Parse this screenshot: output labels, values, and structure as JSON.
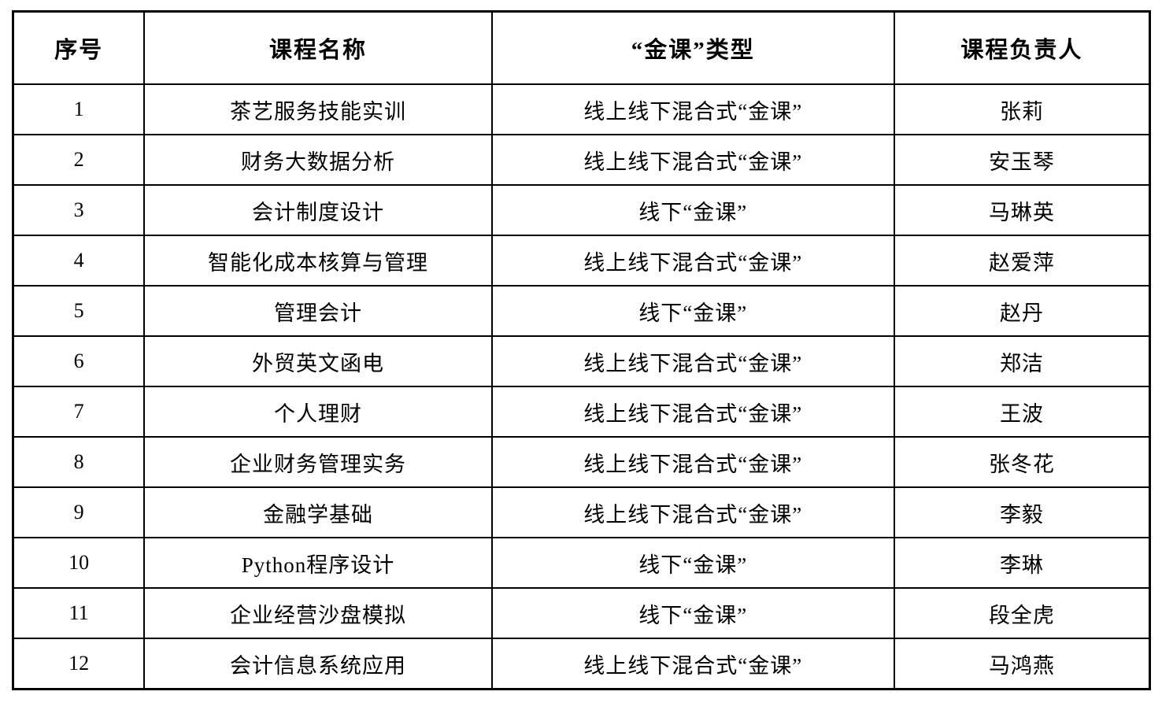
{
  "table": {
    "columns": [
      {
        "key": "no",
        "label": "序号"
      },
      {
        "key": "course",
        "label": "课程名称"
      },
      {
        "key": "type",
        "label": "“金课”类型"
      },
      {
        "key": "leader",
        "label": "课程负责人"
      }
    ],
    "rows": [
      {
        "no": "1",
        "course": "茶艺服务技能实训",
        "type": "线上线下混合式“金课”",
        "leader": "张莉"
      },
      {
        "no": "2",
        "course": "财务大数据分析",
        "type": "线上线下混合式“金课”",
        "leader": "安玉琴"
      },
      {
        "no": "3",
        "course": "会计制度设计",
        "type": "线下“金课”",
        "leader": "马琳英"
      },
      {
        "no": "4",
        "course": "智能化成本核算与管理",
        "type": "线上线下混合式“金课”",
        "leader": "赵爱萍"
      },
      {
        "no": "5",
        "course": "管理会计",
        "type": "线下“金课”",
        "leader": "赵丹"
      },
      {
        "no": "6",
        "course": "外贸英文函电",
        "type": "线上线下混合式“金课”",
        "leader": "郑洁"
      },
      {
        "no": "7",
        "course": "个人理财",
        "type": "线上线下混合式“金课”",
        "leader": "王波"
      },
      {
        "no": "8",
        "course": "企业财务管理实务",
        "type": "线上线下混合式“金课”",
        "leader": "张冬花"
      },
      {
        "no": "9",
        "course": "金融学基础",
        "type": "线上线下混合式“金课”",
        "leader": "李毅"
      },
      {
        "no": "10",
        "course": "Python程序设计",
        "type": "线下“金课”",
        "leader": "李琳"
      },
      {
        "no": "11",
        "course": "企业经营沙盘模拟",
        "type": "线下“金课”",
        "leader": "段全虎"
      },
      {
        "no": "12",
        "course": "会计信息系统应用",
        "type": "线上线下混合式“金课”",
        "leader": "马鸿燕"
      }
    ],
    "colors": {
      "border": "#000000",
      "text": "#000000",
      "background": "#ffffff"
    }
  }
}
